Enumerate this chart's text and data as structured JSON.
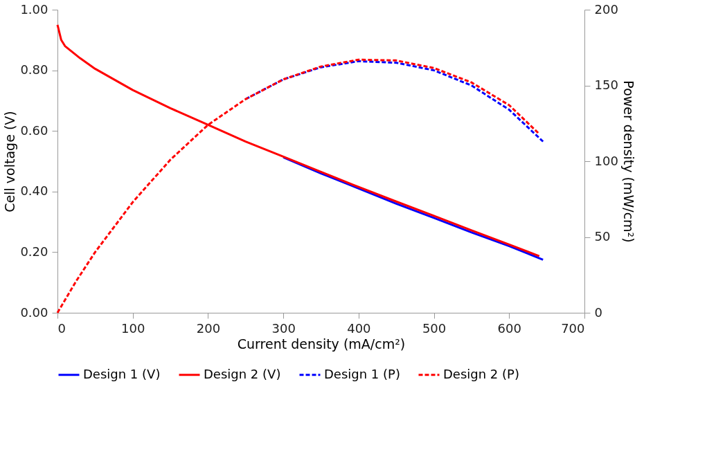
{
  "chart_data": {
    "type": "line",
    "xlabel": "Current density (mA/cm²)",
    "ylabel": "Cell voltage (V)",
    "y2label": "Power density (mW/cm²)",
    "xlim": [
      0,
      700
    ],
    "xticks": [
      0,
      100,
      200,
      300,
      400,
      500,
      600,
      700
    ],
    "ylim": [
      0,
      1
    ],
    "yticks": [
      {
        "value": 0,
        "label": "0.00"
      },
      {
        "value": 0.2,
        "label": "0.20"
      },
      {
        "value": 0.4,
        "label": "0.40"
      },
      {
        "value": 0.6,
        "label": "0.60"
      },
      {
        "value": 0.8,
        "label": "0.80"
      },
      {
        "value": 1,
        "label": "1.00"
      }
    ],
    "y2lim": [
      0,
      200
    ],
    "y2ticks": [
      0,
      50,
      100,
      150,
      200
    ],
    "grid": false,
    "legend": "bottom",
    "marker": "none",
    "series": [
      {
        "name": "Design 1 (V)",
        "color": "#0000ff",
        "line_style": "solid",
        "x": [
          300,
          350,
          400,
          450,
          500,
          550,
          600,
          645
        ],
        "values": [
          0.513,
          0.46,
          0.41,
          0.36,
          0.313,
          0.265,
          0.22,
          0.175
        ]
      },
      {
        "name": "Design 2 (V)",
        "color": "#ff0000",
        "line_style": "solid",
        "x": [
          0,
          2,
          5,
          10,
          20,
          30,
          50,
          100,
          150,
          200,
          250,
          300,
          350,
          400,
          450,
          500,
          550,
          600,
          640
        ],
        "values": [
          0.95,
          0.93,
          0.9,
          0.88,
          0.86,
          0.84,
          0.805,
          0.735,
          0.675,
          0.62,
          0.565,
          0.515,
          0.465,
          0.415,
          0.367,
          0.32,
          0.272,
          0.225,
          0.187
        ]
      },
      {
        "name": "Design 1 (P)",
        "color": "#0000ff",
        "line_style": "dashed",
        "axis": "y2",
        "x": [
          250,
          300,
          350,
          400,
          450,
          500,
          550,
          600,
          645
        ],
        "values": [
          141,
          154,
          162,
          166,
          165,
          160,
          150,
          134,
          113
        ]
      },
      {
        "name": "Design 2 (P)",
        "color": "#ff0000",
        "line_style": "dashed",
        "axis": "y2",
        "x": [
          0,
          25,
          50,
          100,
          150,
          200,
          250,
          300,
          350,
          400,
          450,
          500,
          550,
          600,
          640
        ],
        "values": [
          0,
          21,
          40,
          73,
          101,
          124,
          141,
          154,
          162.5,
          167,
          166.5,
          161.5,
          152,
          137,
          118
        ]
      }
    ]
  }
}
